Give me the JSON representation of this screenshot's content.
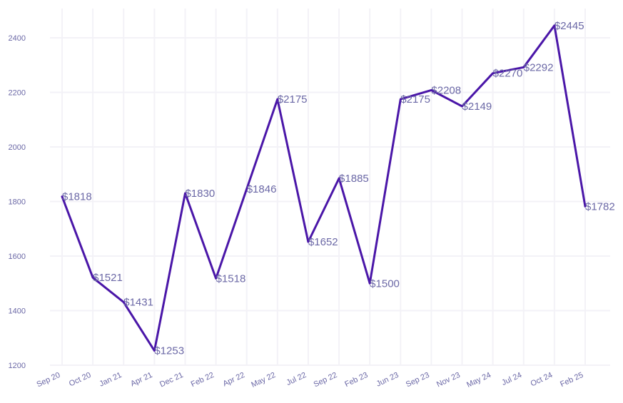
{
  "chart_data": {
    "type": "line",
    "title": "",
    "xlabel": "",
    "ylabel": "",
    "categories": [
      "Sep 20",
      "Oct 20",
      "Jan 21",
      "Apr 21",
      "Dec 21",
      "Feb 22",
      "Apr 22",
      "May 22",
      "Jul 22",
      "Sep 22",
      "Feb 23",
      "Jun 23",
      "Sep 23",
      "Nov 23",
      "May 24",
      "Jul 24",
      "Oct 24",
      "Feb 25"
    ],
    "series": [
      {
        "values": [
          1818,
          1521,
          1431,
          1253,
          1830,
          1518,
          1846,
          2175,
          1652,
          1885,
          1500,
          2175,
          2208,
          2149,
          2270,
          2292,
          2445,
          1782
        ],
        "labels": [
          "$1818",
          "$1521",
          "$1431",
          "$1253",
          "$1830",
          "$1518",
          "$1846",
          "$2175",
          "$1652",
          "$1885",
          "$1500",
          "$2175",
          "$2208",
          "$2149",
          "$2270",
          "$2292",
          "$2445",
          "$1782"
        ]
      }
    ],
    "yticks": [
      1200,
      1400,
      1600,
      1800,
      2000,
      2200,
      2400
    ],
    "ylim": [
      1200,
      2500
    ],
    "grid": true,
    "legend": "none",
    "colors": {
      "line": "#4a16a8",
      "text": "#6b68a6",
      "grid": "#f3f2f7"
    }
  }
}
